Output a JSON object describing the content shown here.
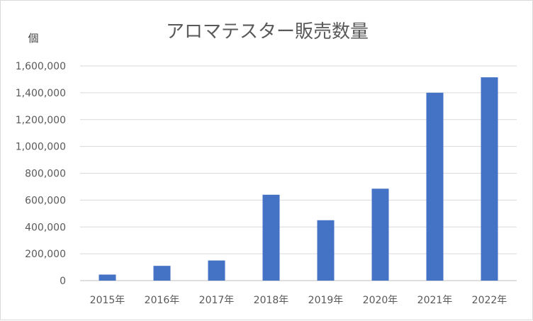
{
  "chart_data": {
    "type": "bar",
    "title": "アロマテスター販売数量",
    "ylabel": "個",
    "categories": [
      "2015年",
      "2016年",
      "2017年",
      "2018年",
      "2019年",
      "2020年",
      "2021年",
      "2022年"
    ],
    "series": [
      {
        "values": [
          45000,
          110000,
          150000,
          640000,
          450000,
          685000,
          1400000,
          1515000
        ]
      }
    ],
    "ylim": [
      0,
      1600000
    ],
    "yticks": [
      "0",
      "200,000",
      "400,000",
      "600,000",
      "800,000",
      "1,000,000",
      "1,200,000",
      "1,400,000",
      "1,600,000"
    ],
    "grid": true,
    "legend": "none",
    "bar_color": "#4472c4"
  }
}
